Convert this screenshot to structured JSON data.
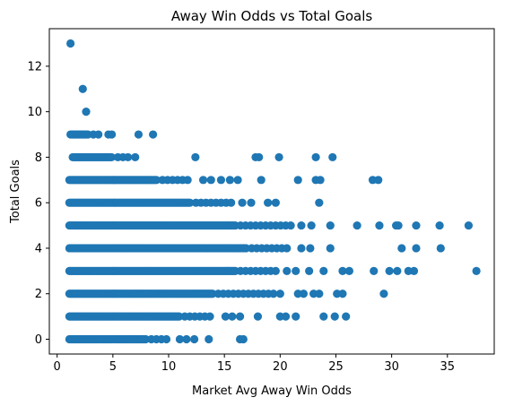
{
  "chart_data": {
    "type": "scatter",
    "title": "Away Win Odds vs Total Goals",
    "xlabel": "Market Avg Away Win Odds",
    "ylabel": "Total Goals",
    "xlim": [
      -0.7,
      39.2
    ],
    "ylim": [
      -0.65,
      13.65
    ],
    "xticks": [
      0,
      5,
      10,
      15,
      20,
      25,
      30,
      35
    ],
    "yticks": [
      0,
      2,
      4,
      6,
      8,
      10,
      12
    ],
    "grid": false,
    "marker_color": "#1f77b4",
    "bands": [
      {
        "goals": 0,
        "dense_from": 1.1,
        "dense_to": 8.0,
        "sparse_to": 10.0
      },
      {
        "goals": 1,
        "dense_from": 1.1,
        "dense_to": 11.0,
        "sparse_to": 14.0
      },
      {
        "goals": 2,
        "dense_from": 1.1,
        "dense_to": 14.0,
        "sparse_to": 19.0
      },
      {
        "goals": 3,
        "dense_from": 1.1,
        "dense_to": 16.0,
        "sparse_to": 20.0
      },
      {
        "goals": 4,
        "dense_from": 1.1,
        "dense_to": 17.0,
        "sparse_to": 21.0
      },
      {
        "goals": 5,
        "dense_from": 1.1,
        "dense_to": 16.0,
        "sparse_to": 21.0
      },
      {
        "goals": 6,
        "dense_from": 1.1,
        "dense_to": 12.0,
        "sparse_to": 16.0
      },
      {
        "goals": 7,
        "dense_from": 1.1,
        "dense_to": 9.0,
        "sparse_to": 12.0
      },
      {
        "goals": 8,
        "dense_from": 1.4,
        "dense_to": 5.0,
        "sparse_to": 6.5
      },
      {
        "goals": 9,
        "dense_from": 1.2,
        "dense_to": 2.8,
        "sparse_to": 4.0
      }
    ],
    "points": [
      {
        "x": 1.2,
        "y": 13
      },
      {
        "x": 2.3,
        "y": 11
      },
      {
        "x": 2.6,
        "y": 10
      },
      {
        "x": 4.6,
        "y": 9
      },
      {
        "x": 4.9,
        "y": 9
      },
      {
        "x": 7.3,
        "y": 9
      },
      {
        "x": 8.6,
        "y": 9
      },
      {
        "x": 7.0,
        "y": 8
      },
      {
        "x": 12.4,
        "y": 8
      },
      {
        "x": 17.8,
        "y": 8
      },
      {
        "x": 18.1,
        "y": 8
      },
      {
        "x": 19.9,
        "y": 8
      },
      {
        "x": 23.2,
        "y": 8
      },
      {
        "x": 24.7,
        "y": 8
      },
      {
        "x": 13.1,
        "y": 7
      },
      {
        "x": 13.8,
        "y": 7
      },
      {
        "x": 14.7,
        "y": 7
      },
      {
        "x": 15.5,
        "y": 7
      },
      {
        "x": 16.2,
        "y": 7
      },
      {
        "x": 18.3,
        "y": 7
      },
      {
        "x": 21.6,
        "y": 7
      },
      {
        "x": 23.2,
        "y": 7
      },
      {
        "x": 23.6,
        "y": 7
      },
      {
        "x": 28.3,
        "y": 7
      },
      {
        "x": 28.8,
        "y": 7
      },
      {
        "x": 16.6,
        "y": 6
      },
      {
        "x": 17.4,
        "y": 6
      },
      {
        "x": 18.9,
        "y": 6
      },
      {
        "x": 19.6,
        "y": 6
      },
      {
        "x": 23.5,
        "y": 6
      },
      {
        "x": 21.9,
        "y": 5
      },
      {
        "x": 22.8,
        "y": 5
      },
      {
        "x": 24.5,
        "y": 5
      },
      {
        "x": 26.9,
        "y": 5
      },
      {
        "x": 28.9,
        "y": 5
      },
      {
        "x": 30.4,
        "y": 5
      },
      {
        "x": 30.6,
        "y": 5
      },
      {
        "x": 32.2,
        "y": 5
      },
      {
        "x": 34.3,
        "y": 5
      },
      {
        "x": 36.9,
        "y": 5
      },
      {
        "x": 21.9,
        "y": 4
      },
      {
        "x": 22.7,
        "y": 4
      },
      {
        "x": 24.5,
        "y": 4
      },
      {
        "x": 30.9,
        "y": 4
      },
      {
        "x": 32.2,
        "y": 4
      },
      {
        "x": 34.4,
        "y": 4
      },
      {
        "x": 20.6,
        "y": 3
      },
      {
        "x": 21.4,
        "y": 3
      },
      {
        "x": 22.6,
        "y": 3
      },
      {
        "x": 23.9,
        "y": 3
      },
      {
        "x": 25.6,
        "y": 3
      },
      {
        "x": 26.2,
        "y": 3
      },
      {
        "x": 28.4,
        "y": 3
      },
      {
        "x": 29.8,
        "y": 3
      },
      {
        "x": 30.5,
        "y": 3
      },
      {
        "x": 31.5,
        "y": 3
      },
      {
        "x": 32.0,
        "y": 3
      },
      {
        "x": 37.6,
        "y": 3
      },
      {
        "x": 19.4,
        "y": 2
      },
      {
        "x": 20.0,
        "y": 2
      },
      {
        "x": 21.6,
        "y": 2
      },
      {
        "x": 22.1,
        "y": 2
      },
      {
        "x": 23.0,
        "y": 2
      },
      {
        "x": 23.5,
        "y": 2
      },
      {
        "x": 25.1,
        "y": 2
      },
      {
        "x": 25.6,
        "y": 2
      },
      {
        "x": 29.3,
        "y": 2
      },
      {
        "x": 15.1,
        "y": 1
      },
      {
        "x": 15.7,
        "y": 1
      },
      {
        "x": 16.4,
        "y": 1
      },
      {
        "x": 18.0,
        "y": 1
      },
      {
        "x": 20.0,
        "y": 1
      },
      {
        "x": 20.5,
        "y": 1
      },
      {
        "x": 21.4,
        "y": 1
      },
      {
        "x": 23.9,
        "y": 1
      },
      {
        "x": 24.9,
        "y": 1
      },
      {
        "x": 25.9,
        "y": 1
      },
      {
        "x": 11.0,
        "y": 0
      },
      {
        "x": 11.6,
        "y": 0
      },
      {
        "x": 12.3,
        "y": 0
      },
      {
        "x": 13.6,
        "y": 0
      },
      {
        "x": 16.4,
        "y": 0
      },
      {
        "x": 16.7,
        "y": 0
      }
    ]
  }
}
